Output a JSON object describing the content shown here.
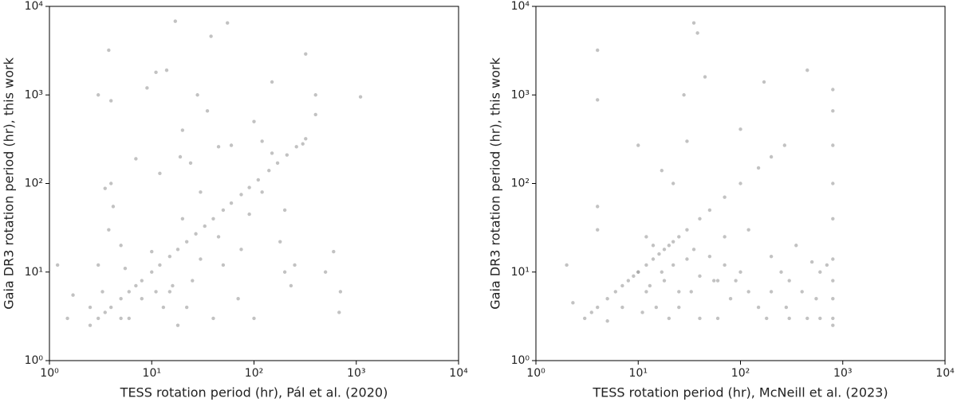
{
  "chart_data": [
    {
      "type": "scatter",
      "log": true,
      "color": "#999999",
      "xlabel": "TESS rotation period (hr), Pál et al. (2020)",
      "ylabel": "Gaia DR3 rotation period (hr), this work",
      "xlim": [
        1,
        10000
      ],
      "ylim": [
        1,
        10000
      ],
      "xticks": [
        {
          "value": 1,
          "label": "10⁰"
        },
        {
          "value": 10,
          "label": "10¹"
        },
        {
          "value": 100,
          "label": "10²"
        },
        {
          "value": 1000,
          "label": "10³"
        },
        {
          "value": 10000,
          "label": "10⁴"
        }
      ],
      "yticks": [
        {
          "value": 1,
          "label": "10⁰"
        },
        {
          "value": 10,
          "label": "10¹"
        },
        {
          "value": 100,
          "label": "10²"
        },
        {
          "value": 1000,
          "label": "10³"
        },
        {
          "value": 10000,
          "label": "10⁴"
        }
      ],
      "x": [
        2.5,
        3,
        3.5,
        4,
        5,
        6,
        7,
        8,
        10,
        12,
        15,
        18,
        22,
        27,
        33,
        40,
        50,
        60,
        75,
        90,
        110,
        140,
        170,
        210,
        260,
        320,
        1.2,
        1.5,
        1.7,
        2.5,
        3,
        3.3,
        3.5,
        3.8,
        3.8,
        3,
        4,
        4,
        4.2,
        5,
        6,
        7,
        9,
        11,
        14,
        17,
        12,
        15,
        19,
        20,
        22,
        24,
        28,
        30,
        35,
        38,
        45,
        55,
        60,
        75,
        100,
        120,
        150,
        180,
        200,
        230,
        320,
        400,
        500,
        600,
        700,
        680,
        1100,
        40,
        50,
        30,
        25,
        13,
        10,
        8,
        18,
        100,
        70,
        200,
        150,
        120,
        90,
        45,
        20,
        16,
        11,
        5,
        5.5,
        400,
        300,
        250
      ],
      "y": [
        2.5,
        3,
        3.5,
        4,
        5,
        6,
        7,
        8,
        10,
        12,
        15,
        18,
        22,
        27,
        33,
        40,
        50,
        60,
        75,
        90,
        110,
        140,
        170,
        210,
        260,
        320,
        12,
        3,
        5.5,
        4,
        12,
        6,
        88,
        30,
        3200,
        1000,
        860,
        100,
        55,
        3,
        3,
        190,
        1200,
        1800,
        1900,
        6800,
        130,
        6,
        200,
        400,
        4,
        170,
        1000,
        80,
        660,
        4600,
        260,
        6500,
        270,
        18,
        500,
        80,
        1400,
        22,
        10,
        7,
        2900,
        1000,
        10,
        17,
        6,
        3.5,
        950,
        3,
        12,
        14,
        8,
        4,
        17,
        5,
        2.5,
        3,
        5,
        50,
        220,
        300,
        45,
        25,
        40,
        7,
        6,
        20,
        11,
        600,
        280,
        12
      ]
    },
    {
      "type": "scatter",
      "log": true,
      "color": "#999999",
      "xlabel": "TESS rotation period (hr), McNeill et al. (2023)",
      "ylabel": "Gaia DR3 rotation period (hr), this work",
      "xlim": [
        1,
        10000
      ],
      "ylim": [
        1,
        10000
      ],
      "xticks": [
        {
          "value": 1,
          "label": "10⁰"
        },
        {
          "value": 10,
          "label": "10¹"
        },
        {
          "value": 100,
          "label": "10²"
        },
        {
          "value": 1000,
          "label": "10³"
        },
        {
          "value": 10000,
          "label": "10⁴"
        }
      ],
      "yticks": [
        {
          "value": 1,
          "label": "10⁰"
        },
        {
          "value": 10,
          "label": "10¹"
        },
        {
          "value": 100,
          "label": "10²"
        },
        {
          "value": 1000,
          "label": "10³"
        },
        {
          "value": 10000,
          "label": "10⁴"
        }
      ],
      "x": [
        3,
        3.5,
        4,
        5,
        6,
        7,
        8,
        9,
        10,
        12,
        14,
        16,
        18,
        20,
        22,
        25,
        30,
        40,
        50,
        70,
        100,
        150,
        200,
        270,
        2,
        2.3,
        4,
        4,
        4,
        4,
        5,
        7,
        10,
        10,
        12,
        14,
        15,
        17,
        18,
        20,
        22,
        25,
        28,
        30,
        33,
        35,
        38,
        40,
        45,
        50,
        55,
        60,
        70,
        80,
        100,
        100,
        120,
        150,
        170,
        180,
        200,
        250,
        280,
        300,
        350,
        400,
        450,
        500,
        600,
        800,
        800,
        800,
        800,
        800,
        800,
        800,
        800,
        800,
        800,
        700,
        600,
        550,
        450,
        300,
        90,
        70,
        40,
        30,
        22,
        17,
        13,
        12,
        11,
        25,
        35,
        60,
        120,
        200
      ],
      "y": [
        3,
        3.5,
        4,
        5,
        6,
        7,
        8,
        9,
        10,
        12,
        14,
        16,
        18,
        20,
        22,
        25,
        30,
        40,
        50,
        70,
        100,
        150,
        200,
        270,
        12,
        4.5,
        3200,
        880,
        55,
        30,
        2.8,
        4,
        270,
        10,
        6,
        20,
        4,
        140,
        8,
        3,
        100,
        4,
        1000,
        300,
        6,
        6500,
        5000,
        3,
        1600,
        15,
        8,
        3,
        25,
        5,
        410,
        10,
        30,
        4,
        1400,
        3,
        15,
        10,
        4,
        3,
        20,
        6,
        1900,
        13,
        3,
        1150,
        660,
        270,
        100,
        40,
        14,
        8,
        5,
        3,
        2.5,
        12,
        10,
        5,
        3,
        8,
        8,
        12,
        9,
        14,
        12,
        10,
        7,
        25,
        3.5,
        6,
        18,
        8,
        6,
        6
      ]
    }
  ]
}
